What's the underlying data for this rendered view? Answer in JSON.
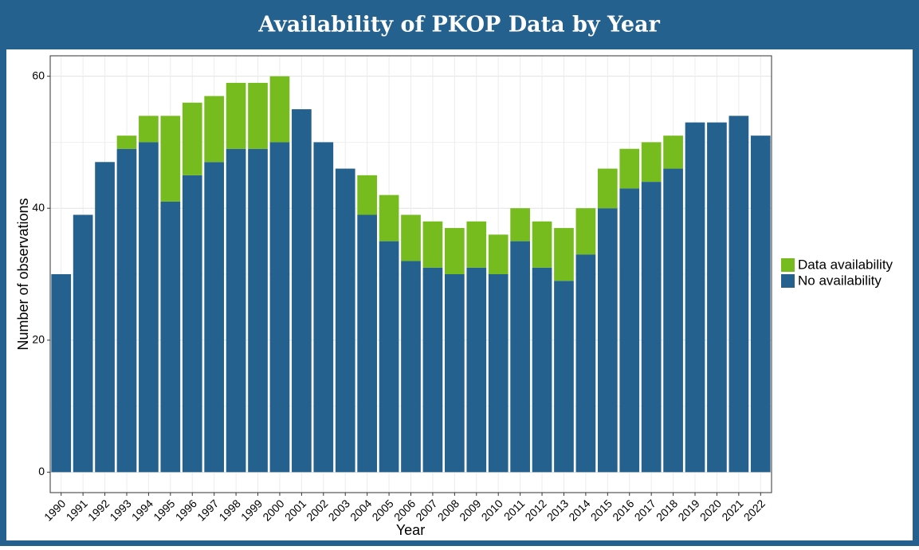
{
  "chart_data": {
    "type": "stacked_bar",
    "title": "Availability of PKOP Data by Year",
    "x_label": "Year",
    "y_label": "Number of observations",
    "categories": [
      "1990",
      "1991",
      "1992",
      "1993",
      "1994",
      "1995",
      "1996",
      "1997",
      "1998",
      "1999",
      "2000",
      "2001",
      "2002",
      "2003",
      "2004",
      "2005",
      "2006",
      "2007",
      "2008",
      "2009",
      "2010",
      "2011",
      "2012",
      "2013",
      "2014",
      "2015",
      "2016",
      "2017",
      "2018",
      "2019",
      "2020",
      "2021",
      "2022"
    ],
    "series": [
      {
        "name": "No availability",
        "color": "#24618f",
        "values": [
          30,
          39,
          47,
          49,
          50,
          41,
          45,
          47,
          49,
          49,
          50,
          55,
          50,
          46,
          39,
          35,
          32,
          31,
          30,
          31,
          30,
          35,
          31,
          29,
          33,
          40,
          43,
          44,
          46,
          53,
          53,
          54,
          51
        ]
      },
      {
        "name": "Data availability",
        "color": "#77bc1f",
        "values": [
          0,
          0,
          0,
          2,
          4,
          13,
          11,
          10,
          10,
          10,
          10,
          0,
          0,
          0,
          6,
          7,
          7,
          7,
          7,
          7,
          6,
          5,
          7,
          8,
          7,
          6,
          6,
          6,
          5,
          0,
          0,
          0,
          0
        ]
      }
    ],
    "ylim": [
      -3.1,
      63.1
    ],
    "yticks": [
      0,
      20,
      40,
      60
    ],
    "grid": true,
    "legend": "right"
  }
}
